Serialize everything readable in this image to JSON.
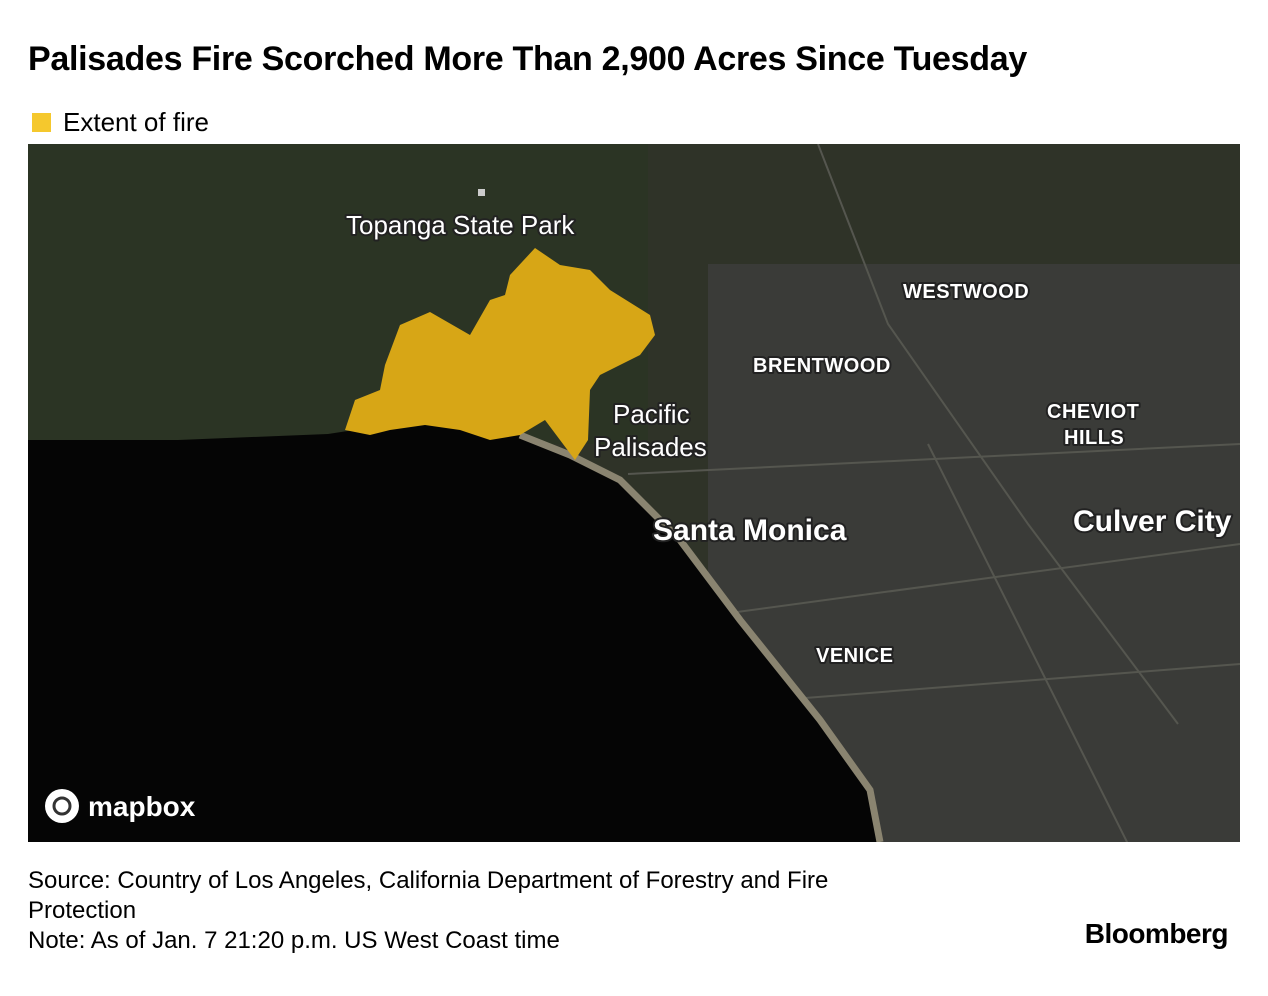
{
  "header": {
    "title": "Palisades Fire Scorched More Than 2,900 Acres Since Tuesday",
    "legend": "Extent of fire"
  },
  "map": {
    "labels": {
      "topanga": "Topanga State Park",
      "westwood": "WESTWOOD",
      "brentwood": "BRENTWOOD",
      "pacific": "Pacific",
      "palisades": "Palisades",
      "cheviot": "CHEVIOT",
      "hills": "HILLS",
      "santa_monica": "Santa Monica",
      "culver_city": "Culver City",
      "venice": "VENICE"
    },
    "attribution": "mapbox"
  },
  "footer": {
    "source": "Source: Country of Los Angeles, California Department of Forestry and Fire Protection",
    "note": "Note: As of Jan. 7 21:20 p.m. US West Coast time",
    "brand": "Bloomberg"
  }
}
